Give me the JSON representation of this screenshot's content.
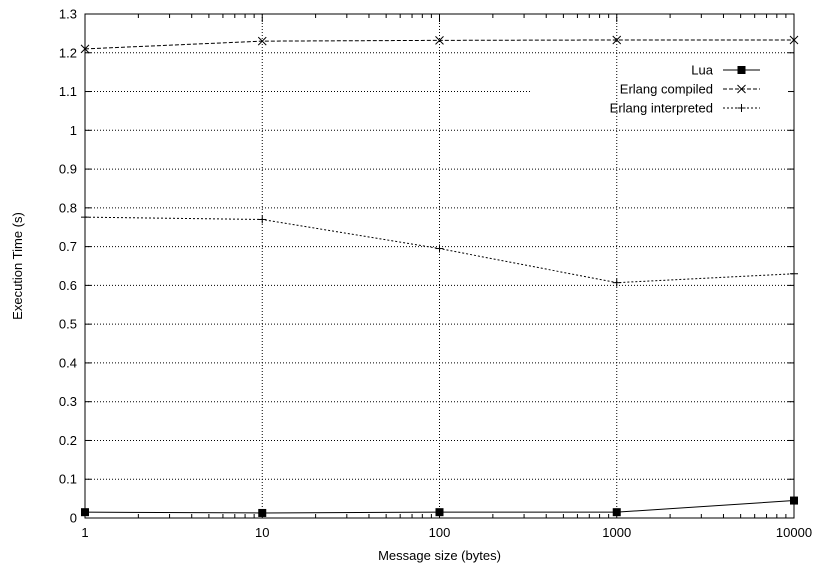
{
  "chart_data": {
    "type": "line",
    "xlabel": "Message size (bytes)",
    "ylabel": "Execution Time (s)",
    "x_scale": "log",
    "x": [
      1,
      10,
      100,
      1000,
      10000
    ],
    "x_ticks": [
      "1",
      "10",
      "100",
      "1000",
      "10000"
    ],
    "y_ticks": [
      "0",
      "0.1",
      "0.2",
      "0.3",
      "0.4",
      "0.5",
      "0.6",
      "0.7",
      "0.8",
      "0.9",
      "1",
      "1.1",
      "1.2",
      "1.3"
    ],
    "ylim": [
      0,
      1.3
    ],
    "xlim": [
      1,
      10000
    ],
    "grid": true,
    "legend_position": "top-right",
    "series": [
      {
        "name": "Lua",
        "values": [
          0.015,
          0.013,
          0.015,
          0.015,
          0.045
        ],
        "marker": "filled-square",
        "dash": "solid"
      },
      {
        "name": "Erlang compiled",
        "values": [
          1.21,
          1.23,
          1.232,
          1.233,
          1.233
        ],
        "marker": "x",
        "dash": "dashed"
      },
      {
        "name": "Erlang interpreted",
        "values": [
          0.776,
          0.77,
          0.695,
          0.607,
          0.63
        ],
        "marker": "plus",
        "dash": "dotted"
      }
    ]
  }
}
